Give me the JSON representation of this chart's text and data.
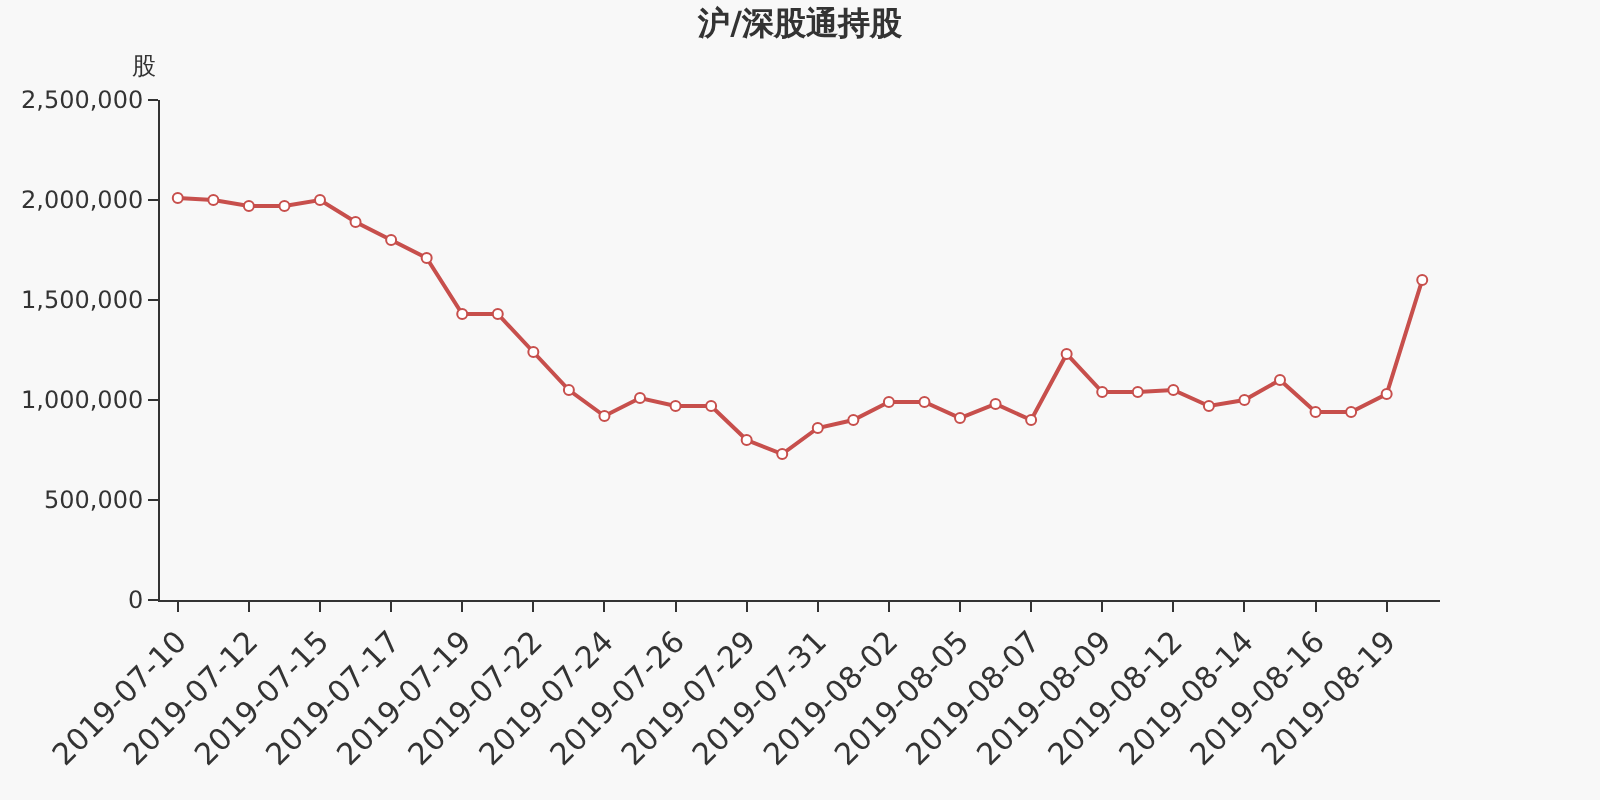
{
  "chart_data": {
    "type": "line",
    "title": "沪/深股通持股",
    "ylabel": "股",
    "categories": [
      "2019-07-10",
      null,
      "2019-07-12",
      null,
      "2019-07-15",
      null,
      "2019-07-17",
      null,
      "2019-07-19",
      null,
      "2019-07-22",
      null,
      "2019-07-24",
      null,
      "2019-07-26",
      null,
      "2019-07-29",
      null,
      "2019-07-31",
      null,
      "2019-08-02",
      null,
      "2019-08-05",
      null,
      "2019-08-07",
      null,
      "2019-08-09",
      null,
      "2019-08-12",
      null,
      "2019-08-14",
      null,
      "2019-08-16",
      null,
      "2019-08-19",
      null
    ],
    "series": [
      {
        "color": "#c74f4c",
        "values": [
          2010000,
          2000000,
          1970000,
          1970000,
          2000000,
          1890000,
          1800000,
          1710000,
          1430000,
          1430000,
          1240000,
          1050000,
          920000,
          1010000,
          970000,
          970000,
          800000,
          730000,
          860000,
          900000,
          990000,
          990000,
          910000,
          980000,
          900000,
          1230000,
          1040000,
          1040000,
          1050000,
          970000,
          1000000,
          1100000,
          940000,
          940000,
          1030000,
          1600000
        ]
      }
    ],
    "ylim": [
      0,
      2500000
    ],
    "yticks": [
      {
        "value": 0,
        "label": "0"
      },
      {
        "value": 500000,
        "label": "500,000"
      },
      {
        "value": 1000000,
        "label": "1,000,000"
      },
      {
        "value": 1500000,
        "label": "1,500,000"
      },
      {
        "value": 2000000,
        "label": "2,000,000"
      },
      {
        "value": 2500000,
        "label": "2,500,000"
      }
    ],
    "grid": false,
    "marker": "circle",
    "line_style": "solid"
  }
}
